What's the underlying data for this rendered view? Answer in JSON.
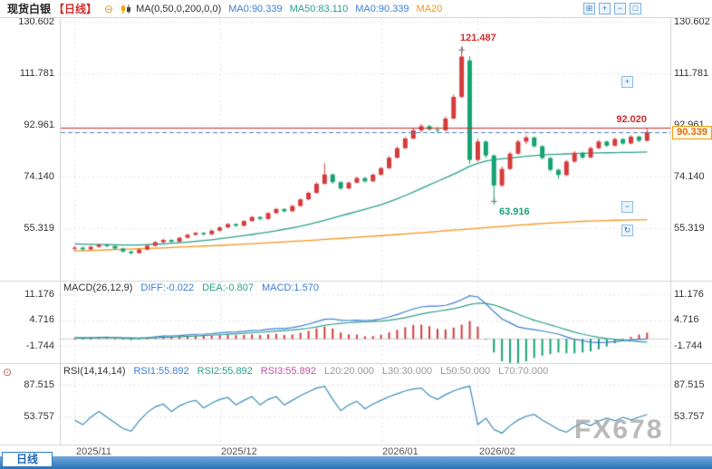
{
  "header": {
    "symbol": "现货白银",
    "timeframe": "【日线】",
    "ma_settings": "MA(0,50,0,200,0,0)",
    "ma0": "MA0:90.339",
    "ma50": "MA50:83.110",
    "ma0b": "MA0:90.339",
    "ma20": "MA20"
  },
  "icons": {
    "collapse_glyph": "⊖",
    "toolbar": [
      "⊞",
      "+",
      "−",
      "□"
    ],
    "side": [
      "+",
      "−",
      "↻"
    ],
    "indicator_glyph": "⊙"
  },
  "indicator_rows": {
    "macd": {
      "title": "MACD(26,12,9)",
      "diff": "DIFF:-0.022",
      "dea": "DEA:-0.807",
      "macd": "MACD:1.570"
    },
    "rsi": {
      "title": "RSI(14,14,14)",
      "rsi1": "RSI1:55.892",
      "rsi2": "RSI2:55.892",
      "rsi3": "RSI3:55.892",
      "l20": "L20:20.000",
      "l30": "L30:30.000",
      "l50": "L50:50.000",
      "l70": "L70:70.000"
    }
  },
  "axes": {
    "main_left": [
      "130.602",
      "111.781",
      "92.961",
      "74.140",
      "55.319"
    ],
    "main_right": [
      "130.602",
      "111.781",
      "92.961",
      "74.140",
      "55.319"
    ],
    "macd_left": [
      "11.176",
      "4.716",
      "-1.744"
    ],
    "macd_right": [
      "11.176",
      "4.716",
      "-1.744"
    ],
    "rsi_left": [
      "87.515",
      "53.757"
    ],
    "rsi_right": [
      "87.515",
      "53.757"
    ],
    "time": [
      "2025/11",
      "2025/12",
      "2026/01",
      "2026/02"
    ]
  },
  "annotations": {
    "high": "121.487",
    "low": "63.916",
    "resistance": "92.020",
    "last_price": "90.339"
  },
  "footer": {
    "timeframe_tab": "日线",
    "watermark": "FX678"
  },
  "chart_data": {
    "type": "candlestick",
    "title": "现货白银 日线",
    "legend": [
      "MA0",
      "MA50",
      "MA200",
      "DIFF",
      "DEA",
      "MACD",
      "RSI1",
      "RSI2",
      "RSI3"
    ],
    "x_axis": {
      "labels": [
        "2025/11",
        "2025/12",
        "2026/01",
        "2026/02"
      ],
      "boundary_indices": [
        0,
        18,
        38,
        50
      ]
    },
    "y_axis": {
      "main_ticks": [
        130.602,
        111.781,
        92.961,
        74.14,
        55.319
      ],
      "macd_ticks": [
        11.176,
        4.716,
        -1.744
      ],
      "rsi_ticks": [
        87.515,
        53.757
      ]
    },
    "levels": {
      "resistance": 92.02,
      "last_price": 90.339,
      "high": {
        "index": 48,
        "value": 121.487
      },
      "low": {
        "index": 52,
        "value": 63.916
      }
    },
    "series": {
      "candles": [
        [
          47.8,
          48.8,
          47.0,
          48.2
        ],
        [
          48.2,
          48.6,
          47.0,
          47.6
        ],
        [
          47.6,
          48.9,
          47.3,
          48.5
        ],
        [
          48.5,
          49.8,
          48.2,
          49.3
        ],
        [
          49.3,
          49.7,
          48.3,
          48.8
        ],
        [
          48.8,
          49.0,
          47.5,
          47.9
        ],
        [
          47.9,
          48.2,
          46.4,
          46.8
        ],
        [
          46.8,
          47.2,
          45.6,
          46.2
        ],
        [
          46.2,
          47.9,
          46.0,
          47.5
        ],
        [
          47.5,
          49.3,
          47.2,
          48.9
        ],
        [
          48.9,
          50.6,
          48.6,
          50.2
        ],
        [
          50.2,
          51.5,
          49.8,
          51.0
        ],
        [
          51.0,
          51.3,
          50.0,
          50.4
        ],
        [
          50.4,
          52.2,
          50.1,
          51.8
        ],
        [
          51.8,
          53.3,
          51.5,
          52.9
        ],
        [
          52.9,
          54.0,
          52.5,
          53.6
        ],
        [
          53.6,
          53.9,
          52.6,
          53.1
        ],
        [
          53.1,
          54.8,
          52.8,
          54.4
        ],
        [
          54.4,
          56.0,
          54.1,
          55.6
        ],
        [
          55.6,
          57.2,
          55.3,
          56.8
        ],
        [
          56.8,
          57.1,
          55.7,
          56.2
        ],
        [
          56.2,
          58.3,
          55.9,
          57.9
        ],
        [
          57.9,
          59.8,
          57.6,
          59.4
        ],
        [
          59.4,
          59.7,
          58.2,
          58.7
        ],
        [
          58.7,
          61.2,
          58.4,
          60.8
        ],
        [
          60.8,
          62.7,
          60.5,
          62.3
        ],
        [
          62.3,
          62.6,
          61.0,
          61.5
        ],
        [
          61.5,
          63.8,
          61.2,
          63.4
        ],
        [
          63.4,
          66.2,
          63.1,
          65.8
        ],
        [
          65.8,
          68.7,
          65.5,
          68.2
        ],
        [
          68.2,
          72.0,
          67.9,
          71.5
        ],
        [
          71.5,
          79.0,
          71.2,
          74.9
        ],
        [
          74.9,
          75.3,
          71.5,
          72.1
        ],
        [
          72.1,
          72.5,
          69.2,
          69.8
        ],
        [
          69.8,
          72.4,
          69.5,
          71.9
        ],
        [
          71.9,
          74.1,
          71.6,
          73.6
        ],
        [
          73.6,
          73.9,
          71.9,
          72.4
        ],
        [
          72.4,
          75.3,
          72.1,
          74.8
        ],
        [
          74.8,
          77.7,
          74.5,
          77.2
        ],
        [
          77.2,
          81.6,
          76.9,
          81.0
        ],
        [
          81.0,
          85.1,
          80.7,
          84.5
        ],
        [
          84.5,
          88.6,
          84.2,
          88.0
        ],
        [
          88.0,
          91.7,
          87.7,
          91.0
        ],
        [
          91.0,
          93.3,
          90.2,
          92.5
        ],
        [
          92.5,
          93.0,
          90.8,
          91.3
        ],
        [
          91.3,
          92.2,
          89.9,
          91.0
        ],
        [
          91.0,
          96.0,
          90.7,
          95.3
        ],
        [
          95.3,
          104.0,
          95.0,
          103.2
        ],
        [
          103.2,
          121.487,
          102.8,
          117.9
        ],
        [
          116.5,
          118.0,
          78.8,
          80.2
        ],
        [
          80.2,
          87.8,
          79.6,
          86.9
        ],
        [
          86.9,
          87.4,
          80.9,
          81.8
        ],
        [
          81.8,
          82.3,
          63.916,
          70.9
        ],
        [
          70.9,
          77.8,
          70.3,
          76.9
        ],
        [
          76.9,
          83.2,
          76.5,
          82.5
        ],
        [
          82.5,
          87.6,
          82.1,
          86.9
        ],
        [
          86.9,
          89.2,
          86.0,
          88.4
        ],
        [
          88.4,
          88.8,
          84.7,
          85.2
        ],
        [
          85.2,
          85.6,
          80.3,
          80.9
        ],
        [
          80.9,
          81.3,
          76.0,
          76.6
        ],
        [
          76.6,
          77.1,
          73.3,
          74.7
        ],
        [
          74.7,
          80.2,
          74.3,
          79.6
        ],
        [
          79.6,
          83.4,
          79.2,
          82.8
        ],
        [
          82.8,
          83.2,
          80.5,
          81.1
        ],
        [
          81.1,
          85.1,
          80.8,
          84.5
        ],
        [
          84.5,
          87.5,
          84.1,
          86.9
        ],
        [
          86.9,
          87.3,
          84.9,
          85.4
        ],
        [
          85.4,
          88.4,
          85.1,
          87.8
        ],
        [
          87.8,
          88.2,
          85.8,
          86.2
        ],
        [
          86.2,
          89.2,
          85.9,
          88.7
        ],
        [
          88.7,
          89.1,
          86.7,
          87.2
        ],
        [
          87.2,
          91.6,
          86.9,
          90.339
        ]
      ],
      "ma50": [
        49.6,
        49.5,
        49.4,
        49.35,
        49.3,
        49.25,
        49.2,
        49.15,
        49.2,
        49.3,
        49.45,
        49.6,
        49.8,
        50.0,
        50.25,
        50.5,
        50.8,
        51.1,
        51.45,
        51.8,
        52.2,
        52.6,
        53.0,
        53.45,
        53.9,
        54.4,
        54.9,
        55.45,
        56.05,
        56.7,
        57.4,
        58.2,
        59.0,
        59.8,
        60.6,
        61.4,
        62.2,
        63.0,
        63.9,
        64.9,
        66.0,
        67.2,
        68.5,
        69.8,
        71.1,
        72.4,
        73.7,
        75.0,
        76.4,
        77.9,
        79.0,
        79.8,
        80.3,
        80.6,
        80.9,
        81.2,
        81.5,
        81.8,
        82.0,
        82.2,
        82.3,
        82.4,
        82.5,
        82.6,
        82.7,
        82.75,
        82.8,
        82.85,
        82.9,
        82.95,
        83.0,
        83.11
      ],
      "ma200": [
        47.0,
        47.1,
        47.2,
        47.3,
        47.4,
        47.5,
        47.6,
        47.7,
        47.8,
        47.9,
        48.0,
        48.1,
        48.25,
        48.4,
        48.5,
        48.65,
        48.8,
        48.9,
        49.05,
        49.2,
        49.35,
        49.5,
        49.65,
        49.8,
        50.0,
        50.15,
        50.3,
        50.5,
        50.65,
        50.85,
        51.0,
        51.2,
        51.4,
        51.6,
        51.8,
        52.0,
        52.2,
        52.4,
        52.6,
        52.8,
        53.0,
        53.2,
        53.45,
        53.65,
        53.9,
        54.1,
        54.35,
        54.6,
        54.8,
        55.05,
        55.3,
        55.5,
        55.75,
        55.95,
        56.2,
        56.4,
        56.6,
        56.8,
        57.0,
        57.2,
        57.35,
        57.5,
        57.65,
        57.8,
        57.9,
        58.0,
        58.1,
        58.2,
        58.25,
        58.3,
        58.35,
        58.4
      ]
    },
    "indicators": {
      "macd": {
        "params": "(26,12,9)",
        "diff": [
          0.3,
          0.25,
          0.3,
          0.4,
          0.45,
          0.35,
          0.2,
          0.1,
          0.15,
          0.3,
          0.5,
          0.7,
          0.75,
          0.85,
          1.0,
          1.15,
          1.2,
          1.3,
          1.5,
          1.7,
          1.75,
          1.9,
          2.1,
          2.15,
          2.4,
          2.6,
          2.6,
          2.8,
          3.2,
          3.7,
          4.3,
          4.9,
          5.0,
          4.7,
          4.6,
          4.7,
          4.6,
          4.7,
          5.0,
          5.5,
          6.1,
          6.8,
          7.5,
          8.0,
          8.2,
          8.2,
          8.4,
          9.0,
          9.8,
          10.8,
          10.5,
          8.8,
          6.8,
          5.0,
          4.0,
          3.0,
          2.6,
          2.3,
          2.0,
          1.6,
          1.2,
          0.5,
          -0.1,
          -0.5,
          -0.8,
          -0.9,
          -0.85,
          -0.7,
          -0.5,
          -0.3,
          -0.15,
          -0.022
        ],
        "dea": [
          0.28,
          0.27,
          0.28,
          0.3,
          0.33,
          0.33,
          0.3,
          0.26,
          0.24,
          0.25,
          0.3,
          0.38,
          0.45,
          0.53,
          0.62,
          0.73,
          0.82,
          0.92,
          1.03,
          1.16,
          1.28,
          1.4,
          1.54,
          1.66,
          1.81,
          1.97,
          2.1,
          2.24,
          2.43,
          2.68,
          3.0,
          3.38,
          3.7,
          3.9,
          4.04,
          4.17,
          4.26,
          4.35,
          4.48,
          4.68,
          4.96,
          5.33,
          5.76,
          6.21,
          6.61,
          6.93,
          7.22,
          7.58,
          8.02,
          8.58,
          8.96,
          8.9,
          8.5,
          7.8,
          7.0,
          6.2,
          5.4,
          4.7,
          4.1,
          3.5,
          2.9,
          2.3,
          1.7,
          1.2,
          0.75,
          0.4,
          0.1,
          -0.15,
          -0.35,
          -0.55,
          -0.7,
          -0.807
        ],
        "last": {
          "diff": -0.022,
          "dea": -0.807,
          "macd": 1.57
        }
      },
      "rsi": {
        "params": "(14,14,14)",
        "values": [
          50,
          45,
          53,
          59,
          53,
          47,
          41,
          38,
          49,
          58,
          64,
          67,
          59,
          65,
          69,
          71,
          63,
          68,
          72,
          74,
          66,
          71,
          75,
          66,
          72,
          75,
          66,
          71,
          76,
          80,
          84,
          86,
          72,
          60,
          66,
          70,
          62,
          67,
          71,
          75,
          78,
          81,
          83,
          84,
          76,
          72,
          77,
          81,
          84,
          86,
          45,
          52,
          40,
          36,
          44,
          50,
          54,
          56,
          50,
          45,
          40,
          37,
          43,
          47,
          44,
          49,
          52,
          49,
          53,
          50,
          53,
          55.892
        ],
        "last": 55.892,
        "ref_levels": [
          20,
          30,
          50,
          70
        ]
      }
    },
    "colors": {
      "up": "#d63b3b",
      "down": "#16a374",
      "ma50": "#2ca089",
      "ma200": "#f7931a",
      "diff": "#3b7dd8",
      "dea": "#2ca089",
      "rsi": "#3c8dbc",
      "resistance_line": "#cc2a2a",
      "price_line": "#4a7ebb"
    }
  }
}
